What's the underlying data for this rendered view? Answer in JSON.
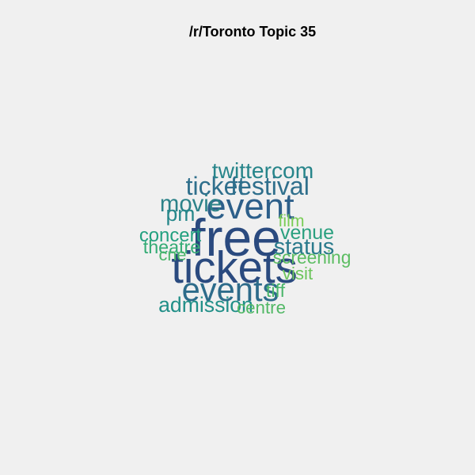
{
  "chart_data": {
    "type": "wordcloud",
    "title": "/r/Toronto Topic 35",
    "words": [
      {
        "text": "free",
        "weight": 1.0,
        "color": "#2a4a7f"
      },
      {
        "text": "tickets",
        "weight": 0.82,
        "color": "#2a4a7f"
      },
      {
        "text": "event",
        "weight": 0.62,
        "color": "#2d5f8a"
      },
      {
        "text": "events",
        "weight": 0.55,
        "color": "#2d6b8a"
      },
      {
        "text": "festival",
        "weight": 0.37,
        "color": "#2f6f8c"
      },
      {
        "text": "ticket",
        "weight": 0.37,
        "color": "#2f6f8c"
      },
      {
        "text": "movie",
        "weight": 0.32,
        "color": "#2c8289"
      },
      {
        "text": "twittercom",
        "weight": 0.3,
        "color": "#27858a"
      },
      {
        "text": "status",
        "weight": 0.31,
        "color": "#2a7a8c"
      },
      {
        "text": "pm",
        "weight": 0.27,
        "color": "#26878a"
      },
      {
        "text": "admission",
        "weight": 0.27,
        "color": "#218f88"
      },
      {
        "text": "venue",
        "weight": 0.24,
        "color": "#2aa07f"
      },
      {
        "text": "concert",
        "weight": 0.22,
        "color": "#22a07f"
      },
      {
        "text": "theatre",
        "weight": 0.21,
        "color": "#33ab74"
      },
      {
        "text": "tiff",
        "weight": 0.21,
        "color": "#4ab56a"
      },
      {
        "text": "screening",
        "weight": 0.2,
        "color": "#5cbd62"
      },
      {
        "text": "centre",
        "weight": 0.19,
        "color": "#52b866"
      },
      {
        "text": "visit",
        "weight": 0.19,
        "color": "#6cc55c"
      },
      {
        "text": "cne",
        "weight": 0.18,
        "color": "#4ab56a"
      },
      {
        "text": "film",
        "weight": 0.17,
        "color": "#7acd56"
      }
    ]
  }
}
